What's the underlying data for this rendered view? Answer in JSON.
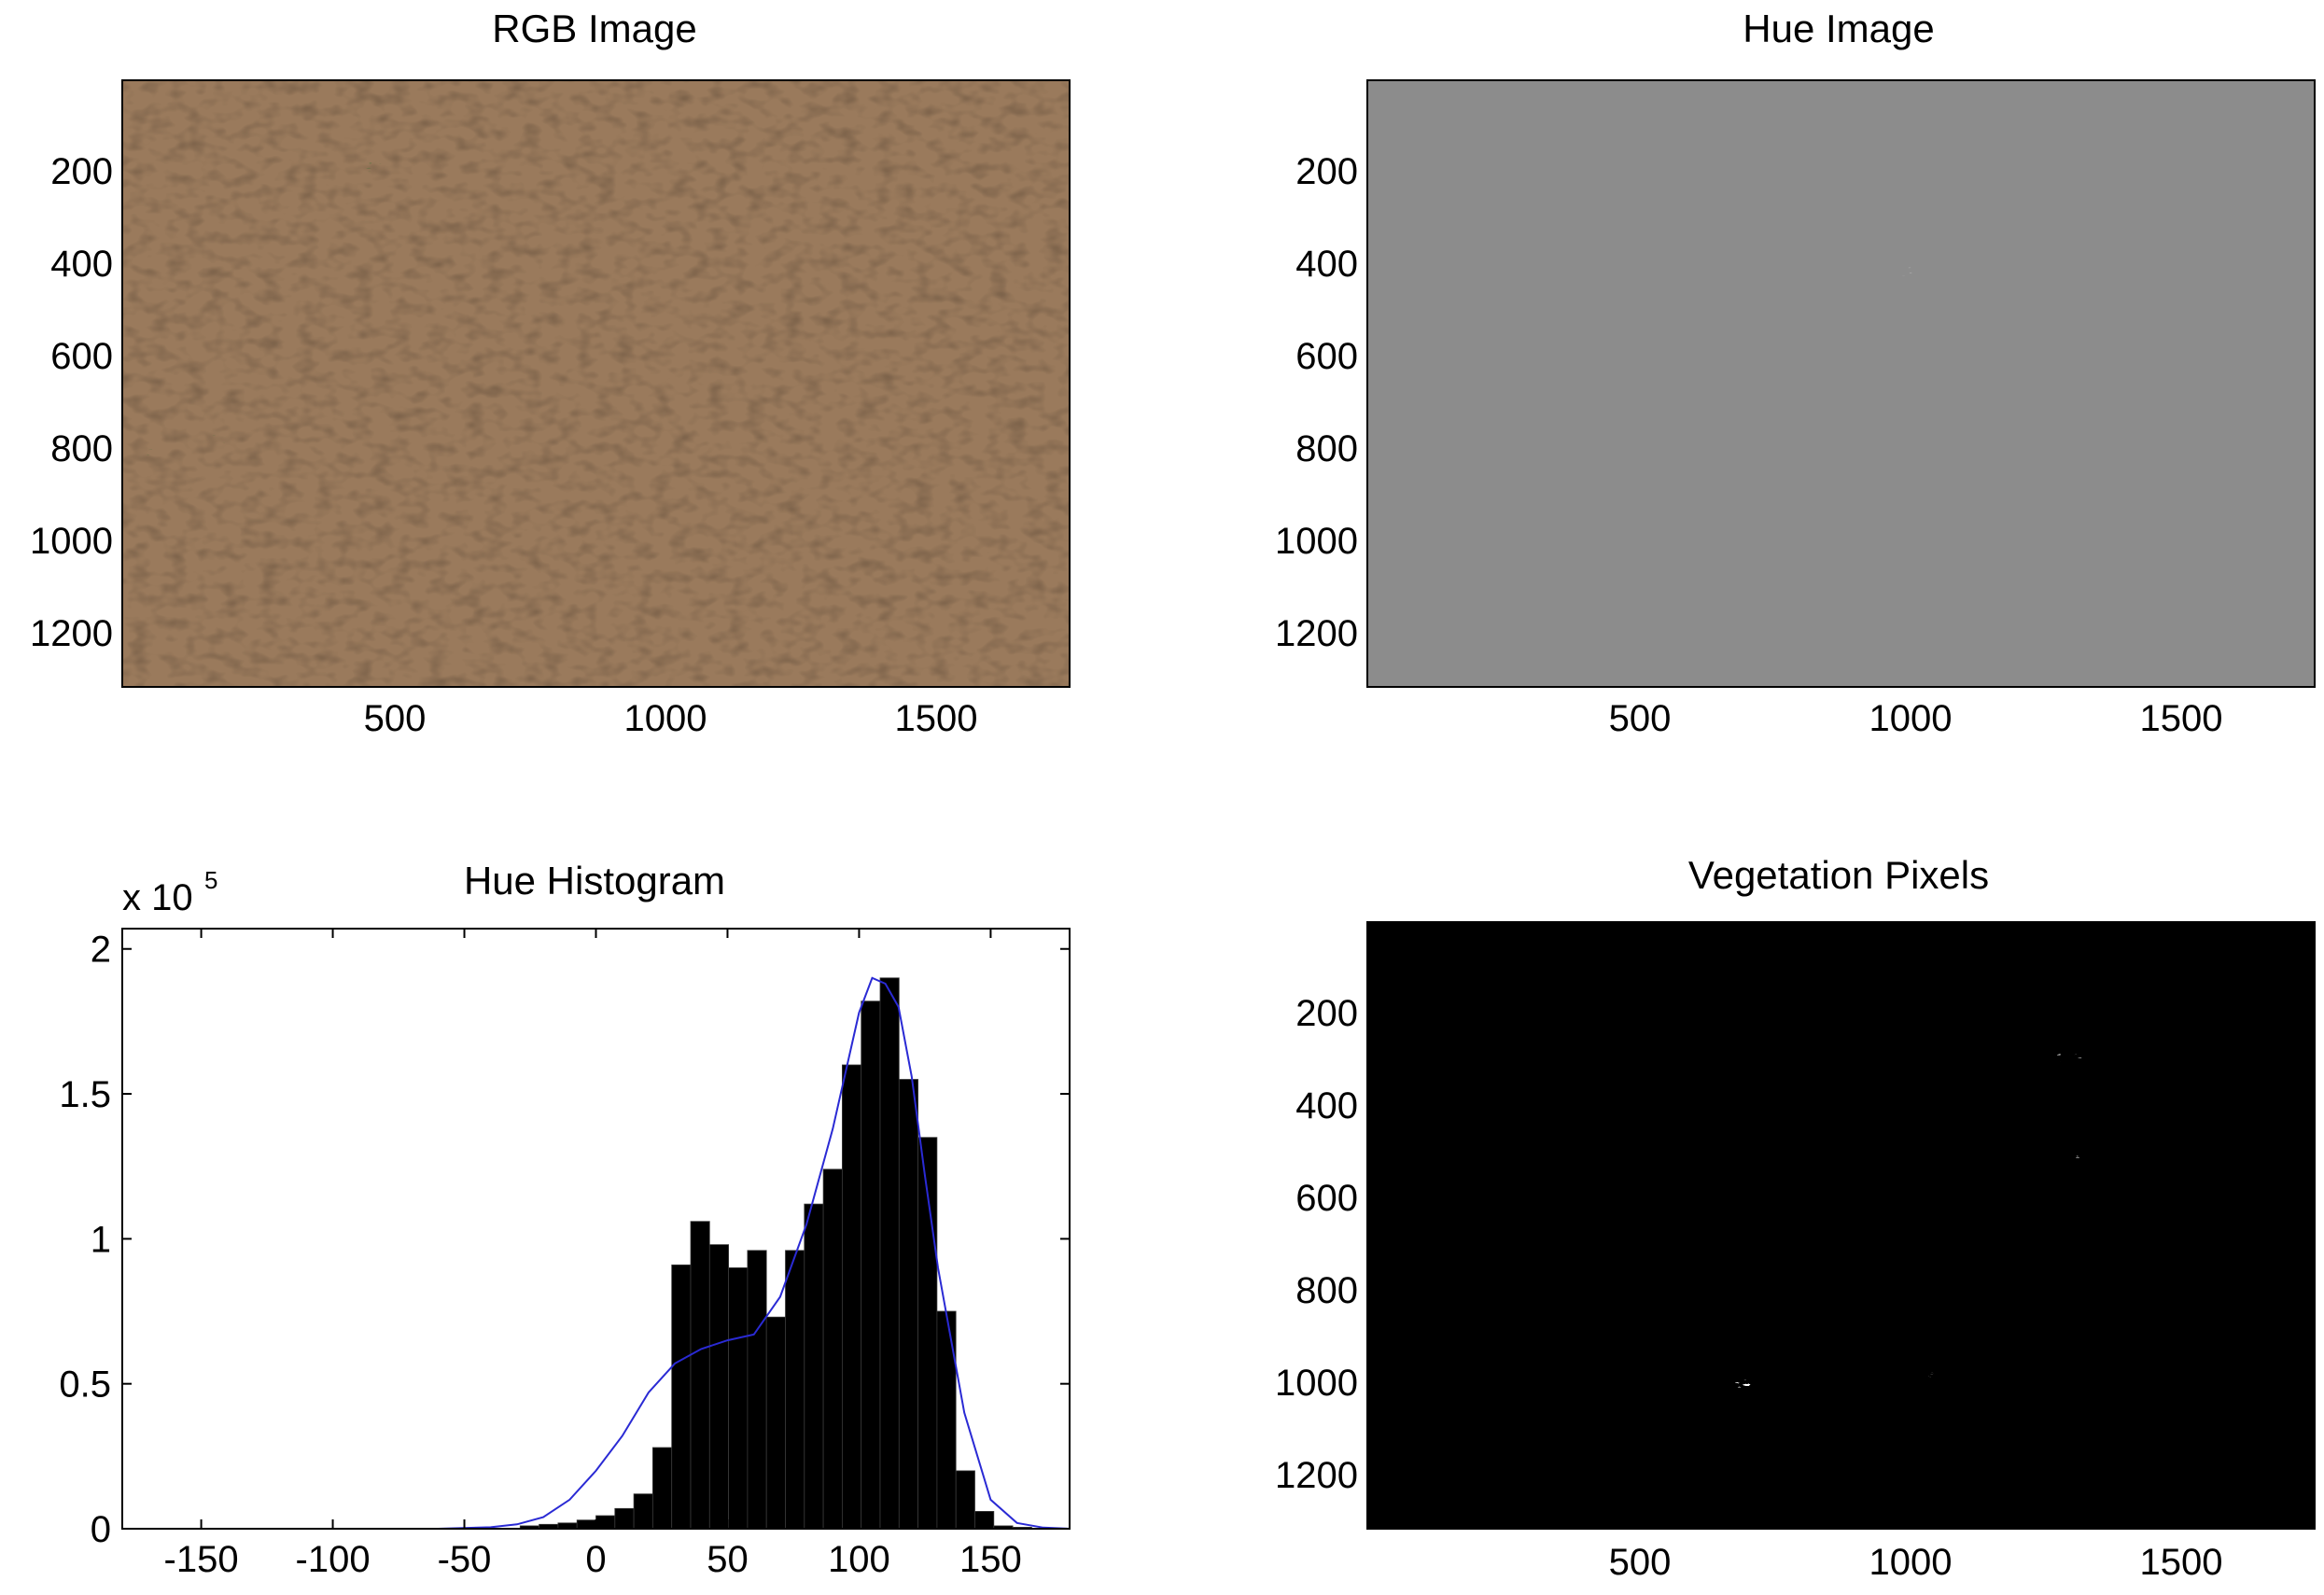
{
  "figure": {
    "panels": [
      {
        "title": "RGB Image",
        "type": "image",
        "x_ticks": [
          "500",
          "1000",
          "1500"
        ],
        "y_ticks": [
          "200",
          "400",
          "600",
          "800",
          "1000",
          "1200"
        ],
        "colors": {
          "soil": "#9a7a5c",
          "vegetation": "#2f6b2c"
        }
      },
      {
        "title": "Hue Image",
        "type": "image",
        "x_ticks": [
          "500",
          "1000",
          "1500"
        ],
        "y_ticks": [
          "200",
          "400",
          "600",
          "800",
          "1000",
          "1200"
        ],
        "colors": {
          "soil": "#8c8c8c",
          "vegetation": "#e6e6e6"
        }
      },
      {
        "title": "Hue Histogram",
        "type": "histogram",
        "exponent_prefix": "x 10",
        "exponent": "5"
      },
      {
        "title": "Vegetation Pixels",
        "type": "image",
        "x_ticks": [
          "500",
          "1000",
          "1500"
        ],
        "y_ticks": [
          "200",
          "400",
          "600",
          "800",
          "1000",
          "1200"
        ],
        "colors": {
          "soil": "#000000",
          "vegetation": "#ffffff"
        }
      }
    ]
  },
  "chart_data": {
    "type": "bar",
    "title": "Hue Histogram",
    "xlim": [
      -180,
      180
    ],
    "ylim": [
      0,
      2.07
    ],
    "y_scale_factor": "1e5",
    "x_ticks": [
      "-150",
      "-100",
      "-50",
      "0",
      "50",
      "100",
      "150"
    ],
    "y_ticks": [
      "0",
      "0.5",
      "1",
      "1.5",
      "2"
    ],
    "bin_width": 7.2,
    "bin_centers": [
      -25.2,
      -18.0,
      -10.8,
      -3.6,
      3.6,
      10.8,
      18.0,
      25.2,
      32.4,
      39.6,
      46.8,
      54.0,
      61.2,
      68.4,
      75.6,
      82.8,
      90.0,
      97.2,
      104.4,
      111.6,
      118.8,
      126.0,
      133.2,
      140.4,
      147.6,
      154.8,
      162.0,
      169.2
    ],
    "series": [
      {
        "name": "",
        "kind": "bar",
        "color": "#000000",
        "values": [
          0.01,
          0.015,
          0.02,
          0.03,
          0.045,
          0.07,
          0.12,
          0.28,
          0.91,
          1.06,
          0.98,
          0.9,
          0.96,
          0.73,
          0.96,
          1.12,
          1.24,
          1.6,
          1.82,
          1.9,
          1.55,
          1.35,
          0.75,
          0.2,
          0.06,
          0.01,
          0.005,
          0.0
        ]
      },
      {
        "name": "",
        "kind": "line",
        "color": "#2a2ad4",
        "x": [
          -180,
          -60,
          -40,
          -30,
          -20,
          -10,
          0,
          10,
          20,
          30,
          40,
          50,
          60,
          70,
          80,
          90,
          100,
          105,
          110,
          115,
          120,
          125,
          130,
          140,
          150,
          160,
          170,
          180
        ],
        "values": [
          0.0,
          0.0,
          0.005,
          0.015,
          0.04,
          0.1,
          0.2,
          0.32,
          0.47,
          0.57,
          0.62,
          0.65,
          0.67,
          0.8,
          1.05,
          1.38,
          1.78,
          1.9,
          1.88,
          1.8,
          1.56,
          1.22,
          0.9,
          0.4,
          0.1,
          0.02,
          0.004,
          0.0
        ]
      }
    ]
  }
}
